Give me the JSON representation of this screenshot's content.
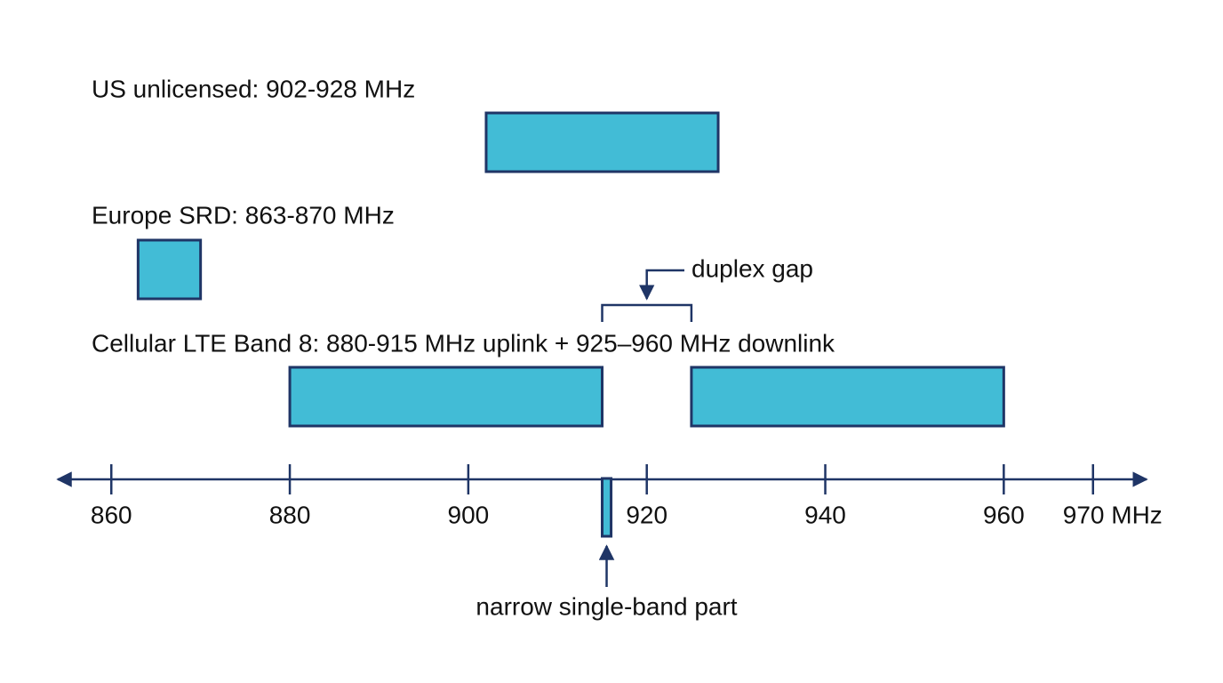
{
  "axis": {
    "xlim": [
      854,
      976
    ],
    "xticks": [
      860,
      880,
      900,
      920,
      940,
      960,
      {
        "value": 970,
        "label": "970 MHz"
      }
    ]
  },
  "bands": [
    {
      "label": "US unlicensed: 902-928 MHz",
      "segments": [
        {
          "start": 902,
          "end": 928
        }
      ]
    },
    {
      "label": "Europe SRD: 863-870 MHz",
      "segments": [
        {
          "start": 863,
          "end": 870
        }
      ]
    },
    {
      "label": "Cellular LTE Band 8: 880-915 MHz uplink + 925–960 MHz downlink",
      "segments": [
        {
          "start": 880,
          "end": 915
        },
        {
          "start": 925,
          "end": 960
        }
      ]
    }
  ],
  "duplex_gap": {
    "label": "duplex gap",
    "start": 915,
    "end": 925
  },
  "narrow_part": {
    "label": "narrow single-band part",
    "start": 915,
    "end": 916
  }
}
